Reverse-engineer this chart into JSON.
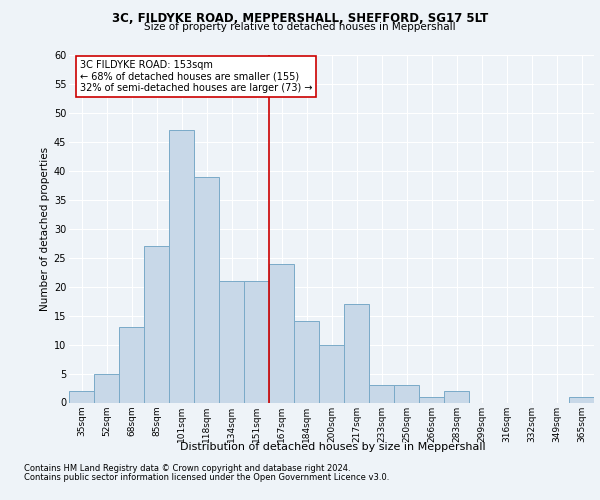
{
  "title1": "3C, FILDYKE ROAD, MEPPERSHALL, SHEFFORD, SG17 5LT",
  "title2": "Size of property relative to detached houses in Meppershall",
  "xlabel": "Distribution of detached houses by size in Meppershall",
  "ylabel": "Number of detached properties",
  "bar_labels": [
    "35sqm",
    "52sqm",
    "68sqm",
    "85sqm",
    "101sqm",
    "118sqm",
    "134sqm",
    "151sqm",
    "167sqm",
    "184sqm",
    "200sqm",
    "217sqm",
    "233sqm",
    "250sqm",
    "266sqm",
    "283sqm",
    "299sqm",
    "316sqm",
    "332sqm",
    "349sqm",
    "365sqm"
  ],
  "bar_values": [
    2,
    5,
    13,
    27,
    47,
    39,
    21,
    21,
    24,
    14,
    10,
    17,
    3,
    3,
    1,
    2,
    0,
    0,
    0,
    0,
    1
  ],
  "bar_color": "#c8d8e8",
  "bar_edge_color": "#7aaac8",
  "vline_x_index": 7,
  "vline_color": "#cc0000",
  "annotation_line1": "3C FILDYKE ROAD: 153sqm",
  "annotation_line2": "← 68% of detached houses are smaller (155)",
  "annotation_line3": "32% of semi-detached houses are larger (73) →",
  "annotation_box_color": "white",
  "annotation_box_edge_color": "#cc0000",
  "ylim": [
    0,
    60
  ],
  "yticks": [
    0,
    5,
    10,
    15,
    20,
    25,
    30,
    35,
    40,
    45,
    50,
    55,
    60
  ],
  "footer1": "Contains HM Land Registry data © Crown copyright and database right 2024.",
  "footer2": "Contains public sector information licensed under the Open Government Licence v3.0.",
  "bg_color": "#eef3f8",
  "plot_bg_color": "#eef3f8"
}
